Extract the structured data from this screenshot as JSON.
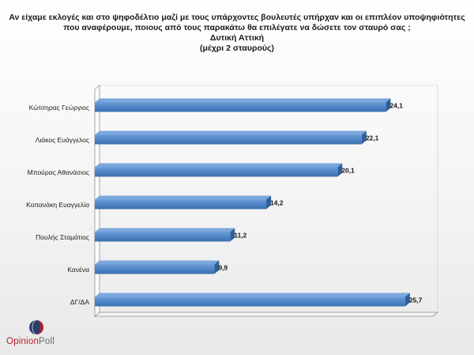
{
  "title": {
    "line1": "Αν είχαμε εκλογές και στο ψηφοδέλτιο μαζί με τους υπάρχοντες βουλευτές υπήρχαν και οι επιπλέον υποψηφιότητες",
    "line2": "που αναφέρουμε, ποιους από τους παρακάτω θα επιλέγατε να δώσετε τον σταυρό σας ;",
    "line3": "Δυτική Αττική",
    "line4": "(μέχρι 2 σταυρούς)"
  },
  "logo": {
    "word1": "Opinion",
    "word2": "Poll"
  },
  "colors": {
    "bar": "#4f86c6",
    "bar_top": "#7aa7dc",
    "bar_dark": "#2f5f9a",
    "axis": "#8c8c8c",
    "logo_red": "#b3202a",
    "logo_gray": "#6a6a6a"
  },
  "chart_data": {
    "type": "bar",
    "orientation": "horizontal",
    "style": "3d",
    "categories": [
      "Κώτσηρας Γεώργιος",
      "Λιάκος Ευάγγελος",
      "Μπούρας Αθανάσιος",
      "Κοπανάκη Ευαγγελία",
      "Πουλής Σταμάτιος",
      "Κανένα",
      "ΔΓ/ΔΑ"
    ],
    "values": [
      24.1,
      22.1,
      20.1,
      14.2,
      11.2,
      9.9,
      25.7
    ],
    "data_labels": [
      "24,1",
      "22,1",
      "20,1",
      "14,2",
      "11,2",
      "9,9",
      "25,7"
    ],
    "xlim": [
      0,
      28
    ],
    "grid": false,
    "legend": "none"
  }
}
